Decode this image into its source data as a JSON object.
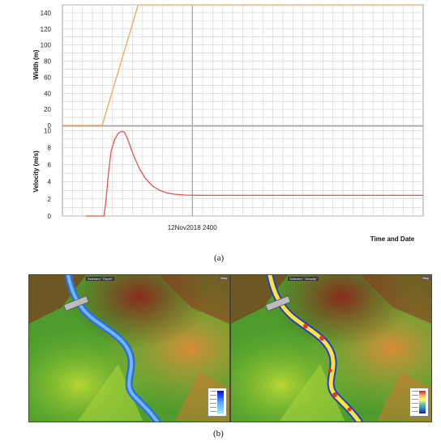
{
  "chart_data": [
    {
      "type": "line",
      "title": "",
      "xlabel": "",
      "ylabel": "Width (m)",
      "ylim": [
        0,
        150
      ],
      "yticks": [
        0,
        20,
        40,
        60,
        80,
        100,
        120,
        140
      ],
      "xlim": [
        0,
        100
      ],
      "grid": true,
      "series": [
        {
          "color": "#f5a55a",
          "x": [
            0,
            6.5,
            11,
            21,
            100
          ],
          "y": [
            0,
            0,
            0,
            150,
            150
          ]
        }
      ]
    },
    {
      "type": "line",
      "title": "",
      "xlabel": "Time and Date",
      "ylabel": "Velocity (m/s)",
      "ylim": [
        0,
        10.5
      ],
      "yticks": [
        0,
        2,
        4,
        6,
        8,
        10
      ],
      "xlim": [
        0,
        100
      ],
      "xticks": [
        {
          "x": 36,
          "label": "12Nov2018 2400"
        }
      ],
      "grid": true,
      "series": [
        {
          "color": "#e8534b",
          "x": [
            6.5,
            11.5,
            12,
            12.8,
            13.5,
            14.5,
            15.5,
            16.5,
            17.2,
            18,
            19,
            20,
            21.5,
            23,
            25,
            27,
            29,
            31,
            34,
            38,
            45,
            55,
            70,
            85,
            100
          ],
          "y": [
            0,
            0,
            1.5,
            5.2,
            7.6,
            9.0,
            9.7,
            9.9,
            9.8,
            9.1,
            7.9,
            6.8,
            5.4,
            4.4,
            3.5,
            3.0,
            2.7,
            2.55,
            2.45,
            2.42,
            2.42,
            2.42,
            2.42,
            2.42,
            2.42
          ]
        }
      ]
    }
  ],
  "captions": {
    "a": "(a)",
    "b": "(b)"
  },
  "maps": {
    "left_label": "Selected: \"Depth\"",
    "right_label": "Selected: \"Velocity\"",
    "corner": "Map"
  }
}
